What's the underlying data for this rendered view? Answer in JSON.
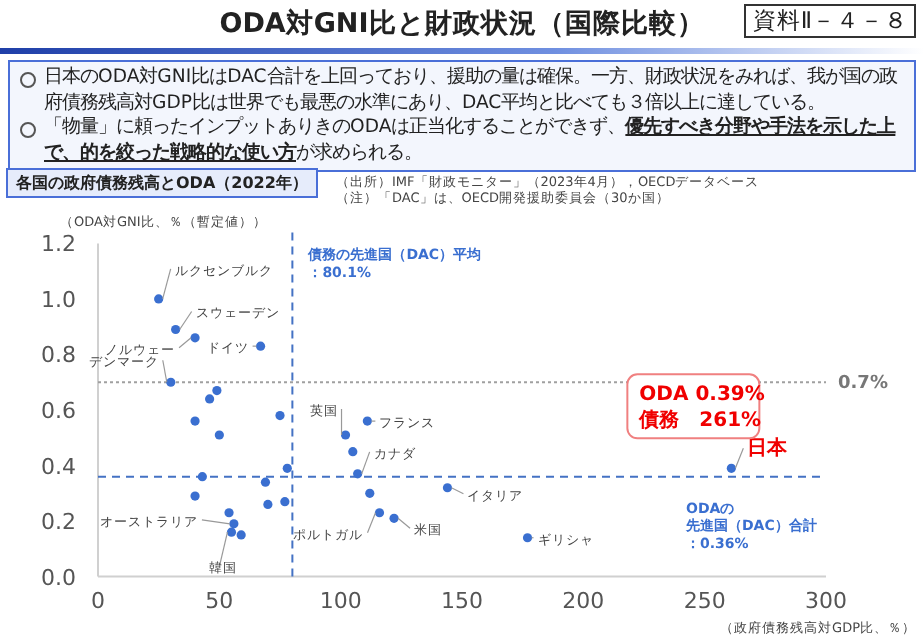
{
  "chart_data": {
    "type": "scatter",
    "title": "ODA対GNI比と財政状況（国際比較）",
    "subtitle": "各国の政府債務残高とODA（2022年）",
    "xlabel": "（政府債務残高対GDP比、％）",
    "ylabel": "（ODA対GNI比、％（暫定値））",
    "x": [
      25,
      32,
      40,
      67,
      30,
      49,
      46,
      40,
      50,
      75,
      102,
      111,
      105,
      107,
      78,
      43,
      69,
      40,
      70,
      77,
      112,
      116,
      122,
      54,
      56,
      55,
      59,
      144,
      177,
      261
    ],
    "series": [
      {
        "color": "#3a6fd0",
        "values": [
          1.0,
          0.89,
          0.86,
          0.83,
          0.7,
          0.67,
          0.64,
          0.56,
          0.51,
          0.58,
          0.51,
          0.56,
          0.45,
          0.37,
          0.39,
          0.36,
          0.34,
          0.29,
          0.26,
          0.27,
          0.3,
          0.23,
          0.21,
          0.23,
          0.19,
          0.16,
          0.15,
          0.32,
          0.14,
          0.39
        ]
      }
    ],
    "xlim": [
      0,
      300
    ],
    "xticks": [
      0,
      50,
      100,
      150,
      200,
      250,
      300
    ],
    "ylim": [
      0,
      1.2
    ],
    "yticks": [
      {
        "value": 0,
        "label": "0.0"
      },
      {
        "value": 0.2,
        "label": "0.2"
      },
      {
        "value": 0.4,
        "label": "0.4"
      },
      {
        "value": 0.6,
        "label": "0.6"
      },
      {
        "value": 0.8,
        "label": "0.8"
      },
      {
        "value": 1.0,
        "label": "1.0"
      },
      {
        "value": 1.2,
        "label": "1.2"
      }
    ],
    "marker": "circle",
    "grid": false,
    "ref_lines": [
      {
        "axis": "x",
        "value": 80.1,
        "label": "債務の先進国（DAC）平均：80.1%",
        "color": "#4472c4",
        "line_style": "dashed"
      },
      {
        "axis": "y",
        "value": 0.7,
        "label": "0.7%",
        "color": "#a0a0a0",
        "line_style": "dotted"
      },
      {
        "axis": "y",
        "value": 0.36,
        "label": "ODAの先進国（DAC）合計：0.36%",
        "color": "#4472c4",
        "line_style": "dashed"
      }
    ],
    "annotations": [
      "資料Ⅱ－４－８",
      "日本のODA対GNI比はDAC合計を上回っており、援助の量は確保。一方、財政状況をみれば、我が国の政府債務残高対GDP比は世界でも最悪の水準にあり、DAC平均と比べても３倍以上に達している。",
      "「物量」に頼ったインプットありきのODAは正当化することができず、**優先すべき分野や手法を示した上で、的を絞った戦略的な使い方**が求められる。",
      "（出所）IMF「財政モニター」（2023年4月），OECDデータベース",
      "（注）「DAC」は、OECD開発援助委員会（30か国）",
      {
        "text": "ルクセンブルク",
        "x": 25,
        "y": 1.0
      },
      {
        "text": "スウェーデン",
        "x": 32,
        "y": 0.89
      },
      {
        "text": "ノルウェー",
        "x": 40,
        "y": 0.86
      },
      {
        "text": "ドイツ",
        "x": 67,
        "y": 0.83
      },
      {
        "text": "デンマーク",
        "x": 30,
        "y": 0.7
      },
      {
        "text": "英国",
        "x": 102,
        "y": 0.51
      },
      {
        "text": "フランス",
        "x": 111,
        "y": 0.56
      },
      {
        "text": "カナダ",
        "x": 107,
        "y": 0.37
      },
      {
        "text": "イタリア",
        "x": 144,
        "y": 0.32
      },
      {
        "text": "ポルトガル",
        "x": 116,
        "y": 0.23
      },
      {
        "text": "米国",
        "x": 122,
        "y": 0.21
      },
      {
        "text": "ギリシャ",
        "x": 177,
        "y": 0.14
      },
      {
        "text": "オーストラリア",
        "x": 56,
        "y": 0.19
      },
      {
        "text": "韓国",
        "x": 55,
        "y": 0.16
      },
      {
        "text": "日本",
        "x": 261,
        "y": 0.39
      },
      {
        "text": "ODA 0.39%\n債務　261%",
        "x": 261,
        "y": 0.39
      }
    ]
  }
}
